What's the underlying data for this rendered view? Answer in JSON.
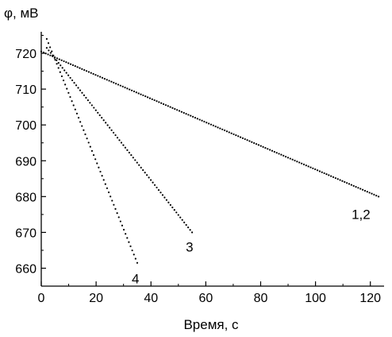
{
  "chart_data": {
    "type": "scatter",
    "ylabel": "φ, мВ",
    "xlabel": "Время, с",
    "xlim": [
      0,
      125
    ],
    "ylim": [
      655,
      726
    ],
    "xticks": [
      0,
      20,
      40,
      60,
      80,
      100,
      120
    ],
    "yticks": [
      660,
      670,
      680,
      690,
      700,
      710,
      720
    ],
    "grid": false,
    "series": [
      {
        "name": "1,2",
        "color": "#000000",
        "x_start": 0,
        "y_start": 720.5,
        "x_end": 123,
        "y_end": 680.0,
        "n_points": 150
      },
      {
        "name": "3",
        "color": "#000000",
        "x_start": 2,
        "y_start": 721.5,
        "x_end": 55,
        "y_end": 670.0,
        "n_points": 75
      },
      {
        "name": "4",
        "color": "#000000",
        "x_start": 2,
        "y_start": 724.0,
        "x_end": 35,
        "y_end": 661.5,
        "n_points": 55
      }
    ]
  }
}
